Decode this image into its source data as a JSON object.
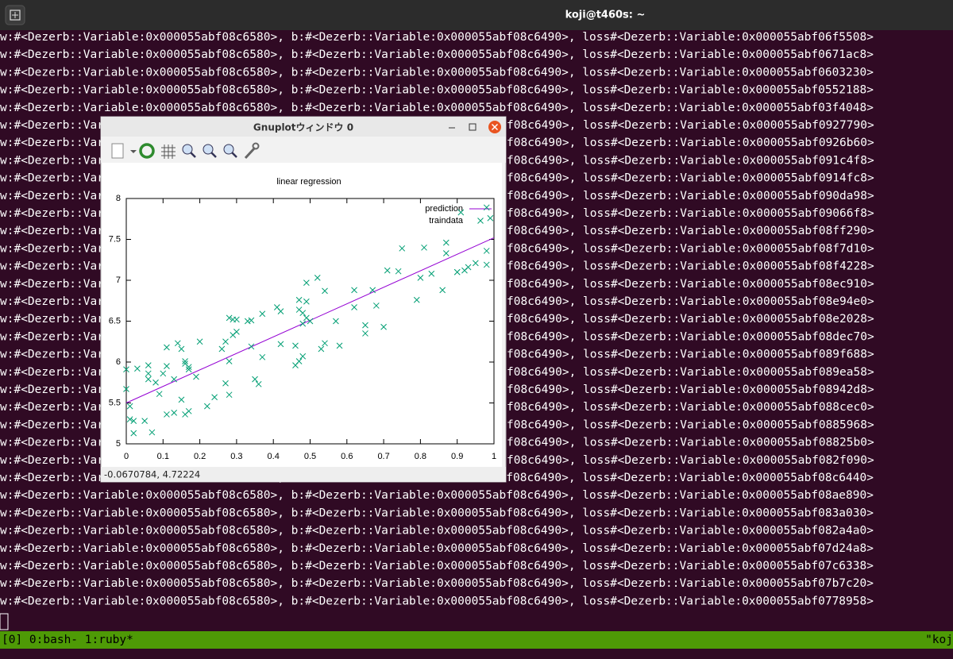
{
  "terminal": {
    "title": "koji@t460s: ~",
    "lines": [
      "w:#<Dezerb::Variable:0x000055abf08c6580>, b:#<Dezerb::Variable:0x000055abf08c6490>, loss#<Dezerb::Variable:0x000055abf06f5508>",
      "w:#<Dezerb::Variable:0x000055abf08c6580>, b:#<Dezerb::Variable:0x000055abf08c6490>, loss#<Dezerb::Variable:0x000055abf0671ac8>",
      "w:#<Dezerb::Variable:0x000055abf08c6580>, b:#<Dezerb::Variable:0x000055abf08c6490>, loss#<Dezerb::Variable:0x000055abf0603230>",
      "w:#<Dezerb::Variable:0x000055abf08c6580>, b:#<Dezerb::Variable:0x000055abf08c6490>, loss#<Dezerb::Variable:0x000055abf0552188>",
      "w:#<Dezerb::Variable:0x000055abf08c6580>, b:#<Dezerb::Variable:0x000055abf08c6490>, loss#<Dezerb::Variable:0x000055abf03f4048>",
      {
        "left": "w:#<Dezerb::Var",
        "right": "f08c6490>, loss#<Dezerb::Variable:0x000055abf0927790>"
      },
      {
        "left": "w:#<Dezerb::Var",
        "right": "f08c6490>, loss#<Dezerb::Variable:0x000055abf0926b60>"
      },
      {
        "left": "w:#<Dezerb::Var",
        "right": "f08c6490>, loss#<Dezerb::Variable:0x000055abf091c4f8>"
      },
      {
        "left": "w:#<Dezerb::Var",
        "right": "f08c6490>, loss#<Dezerb::Variable:0x000055abf0914fc8>"
      },
      {
        "left": "w:#<Dezerb::Var",
        "right": "f08c6490>, loss#<Dezerb::Variable:0x000055abf090da98>"
      },
      {
        "left": "w:#<Dezerb::Var",
        "right": "f08c6490>, loss#<Dezerb::Variable:0x000055abf09066f8>"
      },
      {
        "left": "w:#<Dezerb::Var",
        "right": "f08c6490>, loss#<Dezerb::Variable:0x000055abf08ff290>"
      },
      {
        "left": "w:#<Dezerb::Var",
        "right": "f08c6490>, loss#<Dezerb::Variable:0x000055abf08f7d10>"
      },
      {
        "left": "w:#<Dezerb::Var",
        "right": "f08c6490>, loss#<Dezerb::Variable:0x000055abf08f4228>"
      },
      {
        "left": "w:#<Dezerb::Var",
        "right": "f08c6490>, loss#<Dezerb::Variable:0x000055abf08ec910>"
      },
      {
        "left": "w:#<Dezerb::Var",
        "right": "f08c6490>, loss#<Dezerb::Variable:0x000055abf08e94e0>"
      },
      {
        "left": "w:#<Dezerb::Var",
        "right": "f08c6490>, loss#<Dezerb::Variable:0x000055abf08e2028>"
      },
      {
        "left": "w:#<Dezerb::Var",
        "right": "f08c6490>, loss#<Dezerb::Variable:0x000055abf08dec70>"
      },
      {
        "left": "w:#<Dezerb::Var",
        "right": "f08c6490>, loss#<Dezerb::Variable:0x000055abf089f688>"
      },
      {
        "left": "w:#<Dezerb::Var",
        "right": "f08c6490>, loss#<Dezerb::Variable:0x000055abf089ea58>"
      },
      {
        "left": "w:#<Dezerb::Var",
        "right": "f08c6490>, loss#<Dezerb::Variable:0x000055abf08942d8>"
      },
      {
        "left": "w:#<Dezerb::Var",
        "right": "f08c6490>, loss#<Dezerb::Variable:0x000055abf088cec0>"
      },
      {
        "left": "w:#<Dezerb::Var",
        "right": "f08c6490>, loss#<Dezerb::Variable:0x000055abf0885968>"
      },
      {
        "left": "w:#<Dezerb::Var",
        "right": "f08c6490>, loss#<Dezerb::Variable:0x000055abf08825b0>"
      },
      {
        "left": "w:#<Dezerb::Var",
        "right": "f08c6490>, loss#<Dezerb::Variable:0x000055abf082f090>"
      },
      "w:#<Dezerb::Variable:0x000055abf08c6580>, b:#<Dezerb::Variable:0x000055abf08c6490>, loss#<Dezerb::Variable:0x000055abf08c6440>",
      "w:#<Dezerb::Variable:0x000055abf08c6580>, b:#<Dezerb::Variable:0x000055abf08c6490>, loss#<Dezerb::Variable:0x000055abf08ae890>",
      "w:#<Dezerb::Variable:0x000055abf08c6580>, b:#<Dezerb::Variable:0x000055abf08c6490>, loss#<Dezerb::Variable:0x000055abf083a030>",
      "w:#<Dezerb::Variable:0x000055abf08c6580>, b:#<Dezerb::Variable:0x000055abf08c6490>, loss#<Dezerb::Variable:0x000055abf082a4a0>",
      "w:#<Dezerb::Variable:0x000055abf08c6580>, b:#<Dezerb::Variable:0x000055abf08c6490>, loss#<Dezerb::Variable:0x000055abf07d24a8>",
      "w:#<Dezerb::Variable:0x000055abf08c6580>, b:#<Dezerb::Variable:0x000055abf08c6490>, loss#<Dezerb::Variable:0x000055abf07c6338>",
      "w:#<Dezerb::Variable:0x000055abf08c6580>, b:#<Dezerb::Variable:0x000055abf08c6490>, loss#<Dezerb::Variable:0x000055abf07b7c20>",
      "w:#<Dezerb::Variable:0x000055abf08c6580>, b:#<Dezerb::Variable:0x000055abf08c6490>, loss#<Dezerb::Variable:0x000055abf0778958>"
    ]
  },
  "tmux": {
    "left": "[0] 0:bash- 1:ruby*",
    "right": "\"koj"
  },
  "gnuplot_window": {
    "title": "Gnuplotウィンドウ 0",
    "status": "-0.0670784,  4.72224"
  },
  "chart_data": {
    "type": "scatter",
    "title": "linear regression",
    "xlim": [
      0,
      1
    ],
    "xticks": [
      0,
      0.1,
      0.2,
      0.3,
      0.4,
      0.5,
      0.6,
      0.7,
      0.8,
      0.9,
      1
    ],
    "ylim": [
      5,
      8
    ],
    "yticks": [
      5,
      5.5,
      6,
      6.5,
      7,
      7.5,
      8
    ],
    "legend": "top-right",
    "series": [
      {
        "name": "prediction",
        "type": "line",
        "color": "#9400d3",
        "x": [
          0,
          1
        ],
        "values": [
          5.5,
          7.52
        ]
      },
      {
        "name": "traindata",
        "type": "scatter",
        "color": "#009e73",
        "x": [
          0.0,
          0.0,
          0.01,
          0.01,
          0.02,
          0.03,
          0.02,
          0.05,
          0.06,
          0.06,
          0.06,
          0.07,
          0.08,
          0.09,
          0.1,
          0.11,
          0.11,
          0.11,
          0.13,
          0.13,
          0.14,
          0.15,
          0.15,
          0.16,
          0.16,
          0.16,
          0.17,
          0.17,
          0.17,
          0.19,
          0.2,
          0.22,
          0.24,
          0.26,
          0.27,
          0.28,
          0.27,
          0.28,
          0.28,
          0.29,
          0.29,
          0.3,
          0.3,
          0.33,
          0.34,
          0.34,
          0.35,
          0.36,
          0.37,
          0.37,
          0.41,
          0.42,
          0.42,
          0.46,
          0.46,
          0.47,
          0.47,
          0.47,
          0.48,
          0.48,
          0.48,
          0.49,
          0.49,
          0.5,
          0.49,
          0.52,
          0.54,
          0.53,
          0.54,
          0.57,
          0.58,
          0.62,
          0.62,
          0.65,
          0.65,
          0.67,
          0.68,
          0.7,
          0.71,
          0.74,
          0.75,
          0.79,
          0.8,
          0.81,
          0.83,
          0.86,
          0.87,
          0.87,
          0.9,
          0.9,
          0.92,
          0.93,
          0.95,
          0.91,
          0.98,
          0.98,
          0.99,
          0.98
        ],
        "values": [
          5.91,
          5.67,
          5.46,
          5.3,
          5.28,
          5.92,
          5.13,
          5.28,
          5.79,
          5.96,
          5.86,
          5.14,
          5.75,
          5.61,
          5.86,
          5.36,
          5.95,
          6.18,
          5.79,
          5.38,
          6.23,
          6.16,
          5.54,
          5.98,
          6.01,
          5.36,
          5.94,
          5.91,
          5.4,
          5.82,
          6.25,
          5.46,
          5.57,
          6.16,
          6.25,
          6.01,
          5.74,
          5.6,
          6.54,
          6.52,
          6.33,
          6.37,
          6.52,
          6.5,
          6.51,
          6.19,
          5.79,
          5.73,
          6.06,
          6.59,
          6.67,
          6.62,
          6.22,
          6.2,
          5.96,
          6.64,
          6.76,
          6.01,
          6.47,
          6.07,
          6.6,
          6.74,
          6.54,
          6.5,
          6.97,
          7.03,
          6.23,
          6.16,
          6.87,
          6.5,
          6.2,
          6.67,
          6.88,
          6.35,
          6.45,
          6.88,
          6.69,
          6.43,
          7.12,
          7.11,
          7.39,
          6.76,
          7.03,
          7.4,
          7.08,
          6.88,
          7.46,
          7.33,
          7.1,
          7.1,
          7.12,
          7.16,
          7.21,
          7.83,
          7.36,
          7.89,
          7.76,
          7.19
        ]
      }
    ]
  }
}
